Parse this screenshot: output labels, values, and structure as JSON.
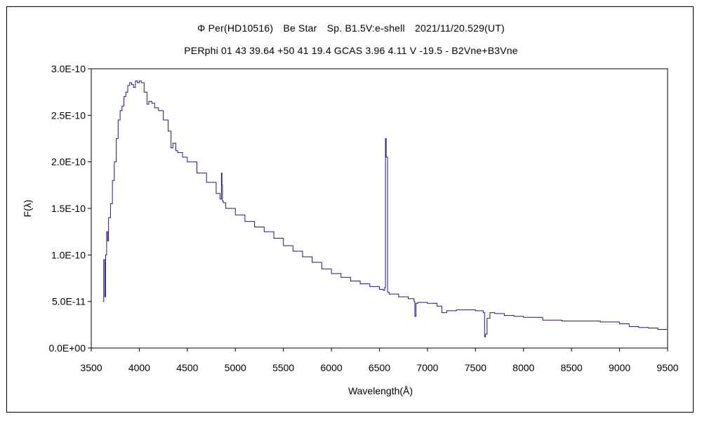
{
  "chart_data": {
    "type": "line",
    "title": "Φ Per(HD10516)　Be Star　Sp. B1.5V:e-shell　2021/11/20.529(UT)",
    "subtitle": "PERphi 01 43 39.64 +50 41 19.4 GCAS 3.96 4.11 V -19.5 - B2Vne+B3Vne",
    "xlabel": "Wavelength(Å)",
    "ylabel": "F(λ)",
    "xlim": [
      3500,
      9500
    ],
    "ylim": [
      0,
      3e-10
    ],
    "xticks": [
      3500,
      4000,
      4500,
      5000,
      5500,
      6000,
      6500,
      7000,
      7500,
      8000,
      8500,
      9000,
      9500
    ],
    "xtick_labels": [
      "3500",
      "4000",
      "4500",
      "5000",
      "5500",
      "6000",
      "6500",
      "7000",
      "7500",
      "8000",
      "8500",
      "9000",
      "9500"
    ],
    "yticks": [
      0,
      5e-11,
      1e-10,
      1.5e-10,
      2e-10,
      2.5e-10,
      3e-10
    ],
    "ytick_labels": [
      "0.0E+00",
      "5.0E-11",
      "1.0E-10",
      "1.5E-10",
      "2.0E-10",
      "2.5E-10",
      "3.0E-10"
    ],
    "grid": false,
    "line_color": "#1a1a7a",
    "series": [
      {
        "x": [
          3620,
          3630,
          3640,
          3650,
          3660,
          3670,
          3680,
          3700,
          3720,
          3740,
          3760,
          3780,
          3800,
          3820,
          3840,
          3860,
          3880,
          3900,
          3920,
          3940,
          3960,
          3980,
          4000,
          4020,
          4050,
          4080,
          4100,
          4130,
          4160,
          4200,
          4250,
          4300,
          4330,
          4350,
          4380,
          4400,
          4450,
          4500,
          4600,
          4700,
          4800,
          4840,
          4855,
          4861,
          4866,
          4875,
          4900,
          5000,
          5100,
          5200,
          5300,
          5400,
          5500,
          5600,
          5700,
          5800,
          5900,
          6000,
          6100,
          6200,
          6300,
          6400,
          6500,
          6540,
          6555,
          6563,
          6570,
          6585,
          6600,
          6700,
          6800,
          6860,
          6868,
          6880,
          6900,
          7000,
          7100,
          7150,
          7200,
          7300,
          7400,
          7500,
          7580,
          7595,
          7605,
          7620,
          7650,
          7700,
          7800,
          7900,
          8000,
          8200,
          8400,
          8600,
          8800,
          9000,
          9100,
          9200,
          9300,
          9400,
          9500
        ],
        "y": [
          5e-11,
          9.5e-11,
          5.5e-11,
          1e-10,
          1.25e-10,
          1.15e-10,
          1.4e-10,
          1.55e-10,
          1.8e-10,
          2e-10,
          2.25e-10,
          2.45e-10,
          2.55e-10,
          2.6e-10,
          2.7e-10,
          2.75e-10,
          2.82e-10,
          2.85e-10,
          2.83e-10,
          2.8e-10,
          2.87e-10,
          2.85e-10,
          2.87e-10,
          2.85e-10,
          2.75e-10,
          2.62e-10,
          2.65e-10,
          2.63e-10,
          2.58e-10,
          2.55e-10,
          2.45e-10,
          2.33e-10,
          2.15e-10,
          2.2e-10,
          2.12e-10,
          2.1e-10,
          2.05e-10,
          2e-10,
          1.88e-10,
          1.78e-10,
          1.66e-10,
          1.6e-10,
          1.88e-10,
          1.75e-10,
          1.58e-10,
          1.56e-10,
          1.5e-10,
          1.43e-10,
          1.36e-10,
          1.3e-10,
          1.25e-10,
          1.18e-10,
          1.1e-10,
          1.04e-10,
          9.8e-11,
          9.2e-11,
          8.5e-11,
          8e-11,
          7.6e-11,
          7.2e-11,
          6.9e-11,
          6.6e-11,
          6.3e-11,
          6.2e-11,
          6.5e-11,
          2.25e-10,
          2.05e-10,
          6e-11,
          5.8e-11,
          5.5e-11,
          5.3e-11,
          5e-11,
          3.4e-11,
          4.8e-11,
          4.9e-11,
          4.8e-11,
          4.5e-11,
          3.8e-11,
          4e-11,
          4.1e-11,
          4.1e-11,
          4e-11,
          3.8e-11,
          1.2e-11,
          1.5e-11,
          3.2e-11,
          3.8e-11,
          3.7e-11,
          3.5e-11,
          3.4e-11,
          3.3e-11,
          3e-11,
          2.9e-11,
          2.9e-11,
          2.8e-11,
          2.6e-11,
          2.3e-11,
          2.2e-11,
          2.15e-11,
          2e-11,
          1.9e-11
        ]
      }
    ]
  }
}
